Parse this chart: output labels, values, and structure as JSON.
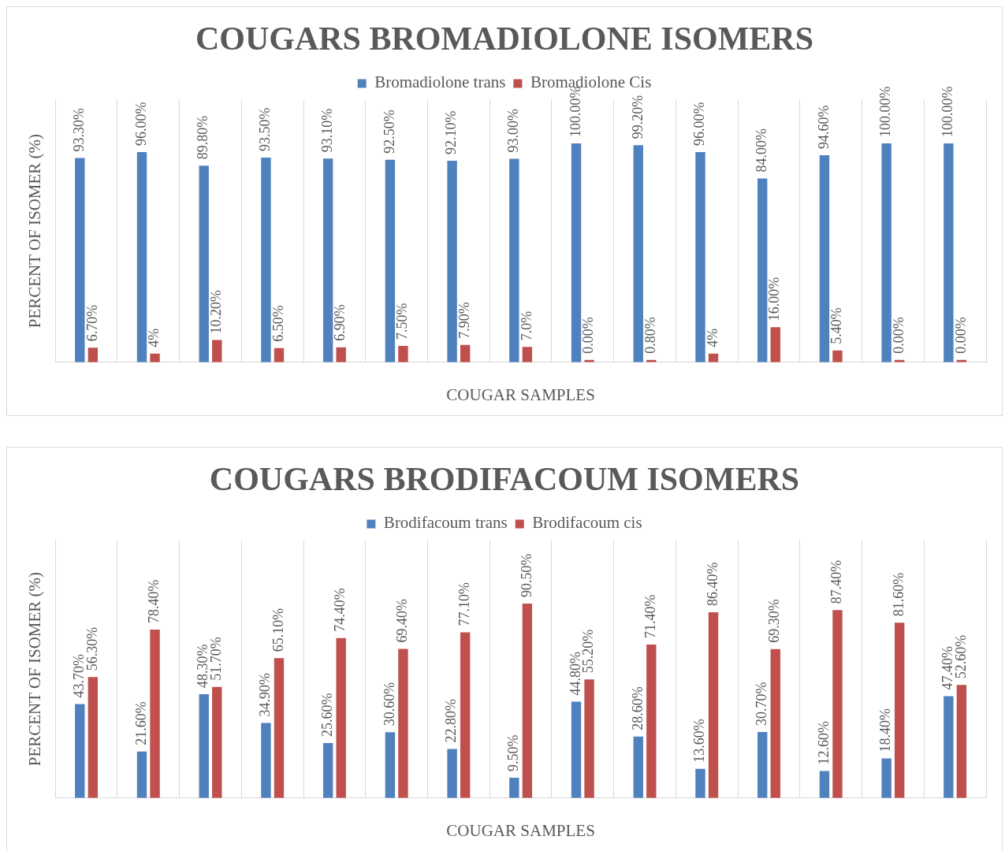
{
  "chart_data": [
    {
      "type": "bar",
      "title": "COUGARS BROMADIOLONE ISOMERS",
      "xlabel": "COUGAR SAMPLES",
      "ylabel": "PERCENT OF ISOMER (%)",
      "categories": [
        null,
        null,
        null,
        null,
        null,
        null,
        null,
        null,
        null,
        null,
        null,
        null,
        null,
        null,
        null
      ],
      "series": [
        {
          "name": "Bromadiolone trans",
          "color": "#4f81bd",
          "values": [
            93.3,
            96,
            89.8,
            93.5,
            93.1,
            92.5,
            92.1,
            93,
            100,
            99.2,
            96,
            84,
            94.6,
            100,
            100
          ],
          "value_labels": [
            "93.30%",
            "96.00%",
            "89.80%",
            "93.50%",
            "93.10%",
            "92.50%",
            "92.10%",
            "93.00%",
            "100.00%",
            "99.20%",
            "96.00%",
            "84.00%",
            "94.60%",
            "100.00%",
            "100.00%"
          ]
        },
        {
          "name": "Bromadiolone Cis",
          "color": "#c0504d",
          "values": [
            6.7,
            4,
            10.2,
            6.5,
            6.9,
            7.5,
            7.9,
            7,
            0,
            0.8,
            4,
            16,
            5.4,
            0,
            0
          ],
          "value_labels": [
            "6.70%",
            "4%",
            "10.20%",
            "6.50%",
            "6.90%",
            "7.50%",
            "7.90%",
            "7.0%",
            "0.00%",
            "0.80%",
            "4%",
            "16.00%",
            "5.40%",
            "0.00%",
            "0.00%"
          ]
        }
      ],
      "legend": "top",
      "grid": "x",
      "tick_labels": false
    },
    {
      "type": "bar",
      "title": "COUGARS BRODIFACOUM ISOMERS",
      "xlabel": "COUGAR SAMPLES",
      "ylabel": "PERCENT OF ISOMER (%)",
      "categories": [
        null,
        null,
        null,
        null,
        null,
        null,
        null,
        null,
        null,
        null,
        null,
        null,
        null,
        null,
        null
      ],
      "series": [
        {
          "name": "Brodifacoum trans",
          "color": "#4f81bd",
          "values": [
            43.7,
            21.6,
            48.3,
            34.9,
            25.6,
            30.6,
            22.8,
            9.5,
            44.8,
            28.6,
            13.6,
            30.7,
            12.6,
            18.4,
            47.4
          ],
          "value_labels": [
            "43.70%",
            "21.60%",
            "48.30%",
            "34.90%",
            "25.60%",
            "30.60%",
            "22.80%",
            "9.50%",
            "44.80%",
            "28.60%",
            "13.60%",
            "30.70%",
            "12.60%",
            "18.40%",
            "47.40%"
          ]
        },
        {
          "name": "Brodifacoum cis",
          "color": "#c0504d",
          "values": [
            56.3,
            78.4,
            51.7,
            65.1,
            74.4,
            69.4,
            77.1,
            90.5,
            55.2,
            71.4,
            86.4,
            69.3,
            87.4,
            81.6,
            52.6
          ],
          "value_labels": [
            "56.30%",
            "78.40%",
            "51.70%",
            "65.10%",
            "74.40%",
            "69.40%",
            "77.10%",
            "90.50%",
            "55.20%",
            "71.40%",
            "86.40%",
            "69.30%",
            "87.40%",
            "81.60%",
            "52.60%"
          ]
        }
      ],
      "legend": "top",
      "grid": "x",
      "tick_labels": false
    }
  ]
}
